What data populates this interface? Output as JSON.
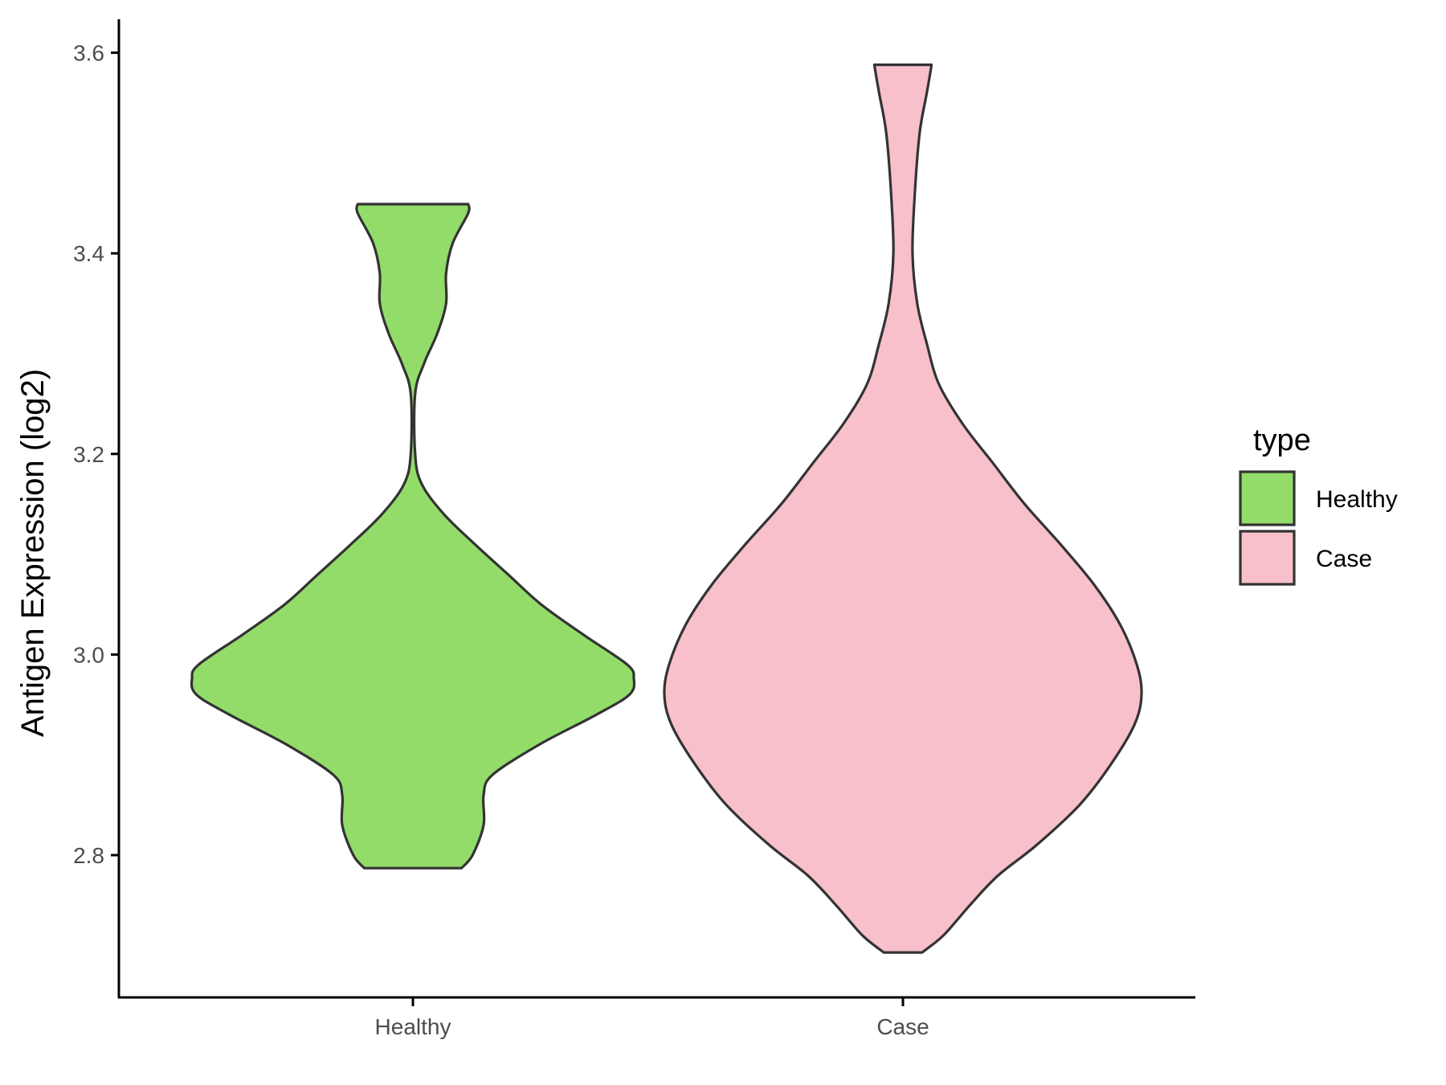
{
  "chart_data": {
    "type": "violin",
    "title": "",
    "xlabel": "",
    "ylabel": "Antigen Expression (log2)",
    "categories": [
      "Healthy",
      "Case"
    ],
    "ylim": [
      2.66,
      3.63
    ],
    "yticks": [
      2.8,
      3.0,
      3.2,
      3.4,
      3.6
    ],
    "ytick_labels": [
      "2.8",
      "3.0",
      "3.2",
      "3.4",
      "3.6"
    ],
    "grid": false,
    "legend": {
      "title": "type",
      "placement": "right",
      "entries": [
        "Healthy",
        "Case"
      ]
    },
    "series": [
      {
        "category": "Healthy",
        "color": "#93DC6A",
        "range": [
          2.787,
          3.449
        ],
        "profile": [
          [
            2.787,
            0.22
          ],
          [
            2.8,
            0.27
          ],
          [
            2.83,
            0.32
          ],
          [
            2.86,
            0.32
          ],
          [
            2.88,
            0.36
          ],
          [
            2.91,
            0.57
          ],
          [
            2.94,
            0.83
          ],
          [
            2.96,
            0.98
          ],
          [
            2.976,
            1.0
          ],
          [
            2.99,
            0.97
          ],
          [
            3.02,
            0.77
          ],
          [
            3.05,
            0.58
          ],
          [
            3.08,
            0.43
          ],
          [
            3.11,
            0.28
          ],
          [
            3.14,
            0.14
          ],
          [
            3.17,
            0.04
          ],
          [
            3.2,
            0.01
          ],
          [
            3.26,
            0.01
          ],
          [
            3.29,
            0.05
          ],
          [
            3.32,
            0.11
          ],
          [
            3.35,
            0.15
          ],
          [
            3.38,
            0.15
          ],
          [
            3.41,
            0.18
          ],
          [
            3.44,
            0.25
          ],
          [
            3.449,
            0.25
          ]
        ]
      },
      {
        "category": "Case",
        "color": "#F7C0CB",
        "range": [
          2.703,
          3.588
        ],
        "profile": [
          [
            2.703,
            0.08
          ],
          [
            2.72,
            0.17
          ],
          [
            2.75,
            0.28
          ],
          [
            2.78,
            0.4
          ],
          [
            2.81,
            0.56
          ],
          [
            2.85,
            0.74
          ],
          [
            2.89,
            0.87
          ],
          [
            2.93,
            0.97
          ],
          [
            2.96,
            1.0
          ],
          [
            2.99,
            0.98
          ],
          [
            3.03,
            0.91
          ],
          [
            3.07,
            0.8
          ],
          [
            3.11,
            0.66
          ],
          [
            3.15,
            0.51
          ],
          [
            3.19,
            0.38
          ],
          [
            3.23,
            0.25
          ],
          [
            3.27,
            0.15
          ],
          [
            3.31,
            0.1
          ],
          [
            3.35,
            0.06
          ],
          [
            3.4,
            0.04
          ],
          [
            3.46,
            0.05
          ],
          [
            3.52,
            0.07
          ],
          [
            3.56,
            0.1
          ],
          [
            3.588,
            0.12
          ]
        ]
      }
    ]
  },
  "colors": {
    "healthy": "#93DC6A",
    "case": "#F7C0CB",
    "outline": "#333333",
    "axis": "#000000"
  }
}
